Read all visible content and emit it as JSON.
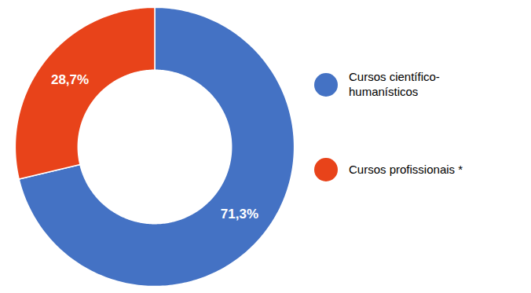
{
  "chart_data": {
    "type": "donut",
    "categories": [
      "Cursos científico-\nhumanísticos",
      "Cursos profissionais *"
    ],
    "values": [
      71.3,
      28.7
    ],
    "value_labels": [
      "71,3%",
      "28,7%"
    ],
    "colors": [
      "#4472C4",
      "#E8431A"
    ],
    "data_labels": true,
    "tick_labels": false,
    "legend": "right"
  }
}
